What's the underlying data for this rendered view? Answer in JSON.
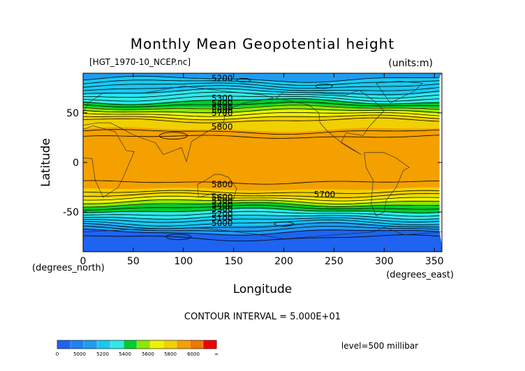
{
  "chart_data": {
    "type": "heatmap",
    "title": "Monthly Mean Geopotential height",
    "subtitle_left": "[HGT_1970-10_NCEP.nc]",
    "subtitle_right": "(units:m)",
    "xlabel": "Longitude",
    "ylabel": "Latitude",
    "x_unit_label": "(degrees_east)",
    "y_unit_label": "(degrees_north)",
    "xlim": [
      0,
      357.5
    ],
    "ylim": [
      -90,
      90
    ],
    "x_ticks": [
      0,
      50,
      100,
      150,
      200,
      250,
      300,
      350
    ],
    "y_ticks": [
      -50,
      0,
      50
    ],
    "contour_interval_text": "CONTOUR INTERVAL = 5.000E+01",
    "level_text": "level=500 millibar",
    "contour_labels": [
      {
        "text": "5200",
        "x": 128,
        "y": 82
      },
      {
        "text": "5300",
        "x": 128,
        "y": 62
      },
      {
        "text": "5400",
        "x": 128,
        "y": 57
      },
      {
        "text": "5500",
        "x": 128,
        "y": 53
      },
      {
        "text": "5600",
        "x": 128,
        "y": 50
      },
      {
        "text": "5700",
        "x": 128,
        "y": 47
      },
      {
        "text": "5800",
        "x": 128,
        "y": 33
      },
      {
        "text": "5800",
        "x": 128,
        "y": -25
      },
      {
        "text": "5700",
        "x": 230,
        "y": -35
      },
      {
        "text": "5600",
        "x": 128,
        "y": -38
      },
      {
        "text": "5500",
        "x": 128,
        "y": -42
      },
      {
        "text": "5400",
        "x": 128,
        "y": -46
      },
      {
        "text": "5300",
        "x": 128,
        "y": -50
      },
      {
        "text": "5200",
        "x": 128,
        "y": -55
      },
      {
        "text": "5100",
        "x": 128,
        "y": -59
      },
      {
        "text": "5000",
        "x": 128,
        "y": -64
      }
    ],
    "bands_north": [
      {
        "lat_from": 90,
        "lat_to": 84,
        "color": "#1f9bf0"
      },
      {
        "lat_from": 84,
        "lat_to": 70,
        "color": "#19c8f0"
      },
      {
        "lat_from": 70,
        "lat_to": 62,
        "color": "#2fe8e8"
      },
      {
        "lat_from": 62,
        "lat_to": 56,
        "color": "#00cc30"
      },
      {
        "lat_from": 56,
        "lat_to": 51,
        "color": "#8ce800"
      },
      {
        "lat_from": 51,
        "lat_to": 46,
        "color": "#f0f000"
      },
      {
        "lat_from": 46,
        "lat_to": 33,
        "color": "#f0d000"
      },
      {
        "lat_from": 33,
        "lat_to": 0,
        "color": "#f3a000"
      }
    ],
    "bands_south": [
      {
        "lat_from": 0,
        "lat_to": -27,
        "color": "#f3a000"
      },
      {
        "lat_from": -27,
        "lat_to": -35,
        "color": "#f0d000"
      },
      {
        "lat_from": -35,
        "lat_to": -39,
        "color": "#f0f000"
      },
      {
        "lat_from": -39,
        "lat_to": -43,
        "color": "#8ce800"
      },
      {
        "lat_from": -43,
        "lat_to": -49,
        "color": "#00cc30"
      },
      {
        "lat_from": -49,
        "lat_to": -55,
        "color": "#2fe8e8"
      },
      {
        "lat_from": -55,
        "lat_to": -63,
        "color": "#19c8f0"
      },
      {
        "lat_from": -63,
        "lat_to": -70,
        "color": "#1f9bf0"
      },
      {
        "lat_from": -70,
        "lat_to": -90,
        "color": "#1e64f0"
      }
    ],
    "colorbar": {
      "colors": [
        "#1e64f0",
        "#1f82f0",
        "#1f9bf0",
        "#19c8f0",
        "#2fe8e8",
        "#00cc30",
        "#8ce800",
        "#f0f000",
        "#f0d000",
        "#f3a000",
        "#f07800",
        "#f00000"
      ],
      "labels": [
        "0",
        "5000",
        "5200",
        "5400",
        "5600",
        "5800",
        "6000",
        "∞"
      ]
    }
  }
}
